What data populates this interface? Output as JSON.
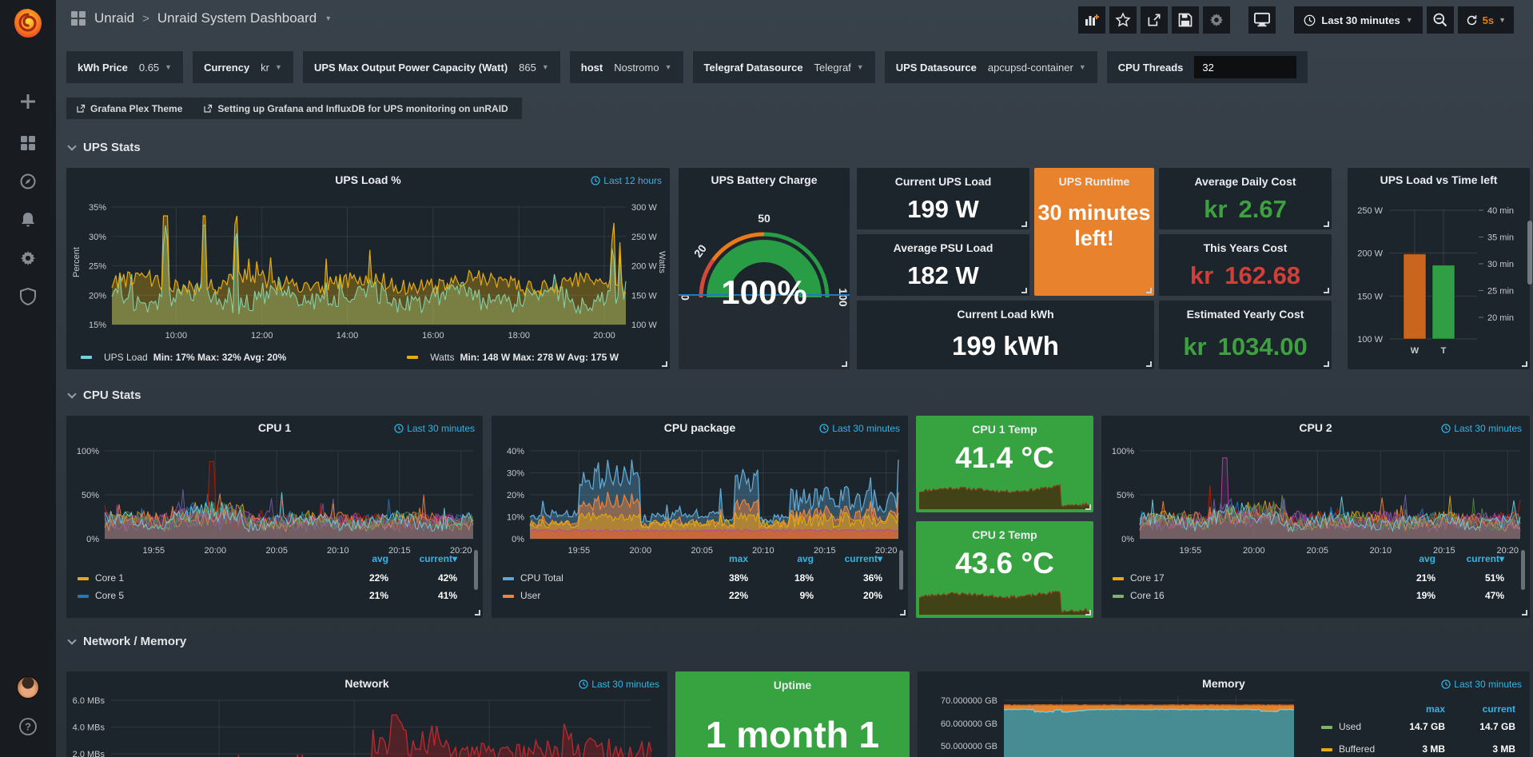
{
  "header": {
    "breadcrumb_root": "Unraid",
    "breadcrumb_sep": ">",
    "title": "Unraid System Dashboard",
    "time_range": "Last 30 minutes",
    "refresh_interval": "5s"
  },
  "variables": [
    {
      "label": "kWh Price",
      "value": "0.65",
      "type": "dropdown"
    },
    {
      "label": "Currency",
      "value": "kr",
      "type": "dropdown"
    },
    {
      "label": "UPS Max Output Power Capacity (Watt)",
      "value": "865",
      "type": "dropdown"
    },
    {
      "label": "host",
      "value": "Nostromo",
      "type": "dropdown"
    },
    {
      "label": "Telegraf Datasource",
      "value": "Telegraf",
      "type": "dropdown"
    },
    {
      "label": "UPS Datasource",
      "value": "apcupsd-container",
      "type": "dropdown"
    },
    {
      "label": "CPU Threads",
      "value": "32",
      "type": "input"
    }
  ],
  "links": [
    {
      "label": "Grafana Plex Theme"
    },
    {
      "label": "Setting up Grafana and InfluxDB for UPS monitoring on unRAID"
    }
  ],
  "sections": {
    "ups": "UPS Stats",
    "cpu": "CPU Stats",
    "network": "Network / Memory"
  },
  "panels": {
    "ups_load": {
      "title": "UPS Load %",
      "time_range": "Last 12 hours",
      "y_left_label": "Percent",
      "y_right_label": "Watts",
      "y_left_ticks": [
        "35%",
        "30%",
        "25%",
        "20%",
        "15%"
      ],
      "y_right_ticks": [
        "300 W",
        "250 W",
        "200 W",
        "150 W",
        "100 W"
      ],
      "x_ticks": [
        "10:00",
        "12:00",
        "14:00",
        "16:00",
        "18:00",
        "20:00"
      ],
      "legend": [
        {
          "name": "UPS Load",
          "color": "#6ed0e0",
          "stats": "Min: 17%  Max: 32%  Avg: 20%"
        },
        {
          "name": "Watts",
          "color": "#e5ac0e",
          "stats": "Min: 148 W  Max: 278 W  Avg: 175 W"
        }
      ]
    },
    "battery": {
      "title": "UPS Battery Charge",
      "value": "100%",
      "scale": [
        "0",
        "20",
        "50",
        "100"
      ],
      "colors": {
        "low": "#d44a3a",
        "mid": "#eb7b18",
        "ok": "#299c46"
      }
    },
    "current_ups_load": {
      "title": "Current UPS Load",
      "value": "199 W"
    },
    "average_psu_load": {
      "title": "Average PSU Load",
      "value": "182 W"
    },
    "current_load_kwh": {
      "title": "Current Load kWh",
      "value": "199 kWh"
    },
    "ups_runtime": {
      "title": "UPS Runtime",
      "value": "30 minutes left!"
    },
    "average_daily_cost": {
      "title": "Average Daily Cost",
      "prefix": "kr",
      "value": "2.67",
      "color": "#3da13f"
    },
    "this_years_cost": {
      "title": "This Years Cost",
      "prefix": "kr",
      "value": "162.68",
      "color": "#d04038"
    },
    "estimated_yearly_cost": {
      "title": "Estimated Yearly Cost",
      "prefix": "kr",
      "value": "1034.00",
      "color": "#3da13f"
    },
    "ups_load_vs_time": {
      "title": "UPS Load vs Time left",
      "y_left_ticks": [
        "250 W",
        "200 W",
        "150 W",
        "100 W"
      ],
      "y_right_ticks": [
        "40 min",
        "35 min",
        "30 min",
        "25 min",
        "20 min"
      ],
      "bars": [
        {
          "label": "W",
          "color": "#c9651d",
          "value": 199
        },
        {
          "label": "T",
          "color": "#2f9e44",
          "value": 186
        }
      ],
      "y_left_range": [
        100,
        250
      ]
    },
    "cpu1": {
      "title": "CPU 1",
      "time_range": "Last 30 minutes",
      "y_ticks": [
        "100%",
        "50%",
        "0%"
      ],
      "x_ticks": [
        "19:55",
        "20:00",
        "20:05",
        "20:10",
        "20:15",
        "20:20"
      ],
      "legend_headers": [
        "avg",
        "current"
      ],
      "legend_sorted": "current",
      "legend_rows": [
        {
          "name": "Core 1",
          "color": "#e5ac0e",
          "values": [
            "22%",
            "42%"
          ]
        },
        {
          "name": "Core 5",
          "color": "#1f78c1",
          "values": [
            "21%",
            "41%"
          ]
        }
      ]
    },
    "cpu_package": {
      "title": "CPU package",
      "time_range": "Last 30 minutes",
      "y_ticks": [
        "40%",
        "30%",
        "20%",
        "10%",
        "0%"
      ],
      "x_ticks": [
        "19:55",
        "20:00",
        "20:05",
        "20:10",
        "20:15",
        "20:20"
      ],
      "legend_headers": [
        "max",
        "avg",
        "current"
      ],
      "legend_sorted": "current",
      "legend_rows": [
        {
          "name": "CPU Total",
          "color": "#5fa7d1",
          "values": [
            "38%",
            "18%",
            "36%"
          ]
        },
        {
          "name": "User",
          "color": "#ef843c",
          "values": [
            "22%",
            "9%",
            "20%"
          ]
        }
      ]
    },
    "cpu1_temp": {
      "title": "CPU 1 Temp",
      "value": "41.4 °C"
    },
    "cpu2_temp": {
      "title": "CPU 2 Temp",
      "value": "43.6 °C"
    },
    "cpu2": {
      "title": "CPU 2",
      "time_range": "Last 30 minutes",
      "y_ticks": [
        "100%",
        "50%",
        "0%"
      ],
      "x_ticks": [
        "19:55",
        "20:00",
        "20:05",
        "20:10",
        "20:15",
        "20:20"
      ],
      "legend_headers": [
        "avg",
        "current"
      ],
      "legend_sorted": "current",
      "legend_rows": [
        {
          "name": "Core 17",
          "color": "#e5ac0e",
          "values": [
            "21%",
            "51%"
          ]
        },
        {
          "name": "Core 16",
          "color": "#7eb26d",
          "values": [
            "19%",
            "47%"
          ]
        }
      ]
    },
    "network": {
      "title": "Network",
      "time_range": "Last 30 minutes",
      "y_ticks": [
        "6.0 MBs",
        "4.0 MBs",
        "2.0 MBs"
      ]
    },
    "uptime": {
      "title": "Uptime",
      "value": "1 month 1"
    },
    "memory": {
      "title": "Memory",
      "time_range": "Last 30 minutes",
      "y_ticks": [
        "70.000000 GB",
        "60.000000 GB",
        "50.000000 GB"
      ],
      "legend_headers": [
        "max",
        "current"
      ],
      "legend_rows": [
        {
          "name": "Used",
          "color": "#7eb26d",
          "values": [
            "14.7 GB",
            "14.7 GB"
          ]
        },
        {
          "name": "Buffered",
          "color": "#e5ac0e",
          "values": [
            "3 MB",
            "3 MB"
          ]
        }
      ]
    }
  }
}
